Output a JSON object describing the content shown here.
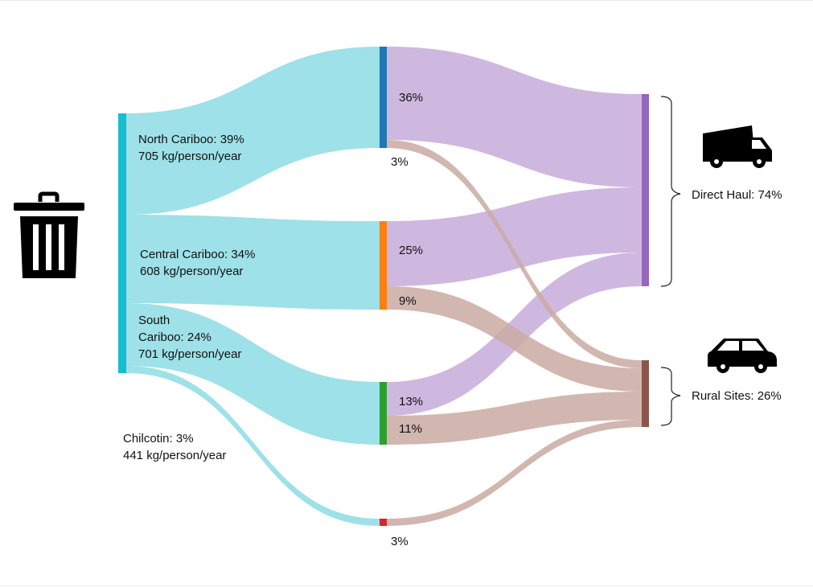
{
  "colors": {
    "source_bar": "#17becf",
    "region_flow": "#9ee1e8",
    "direct_flow": "#cfb8e0",
    "rural_flow": "#c9aaa2",
    "north_cariboo": "#1f77b4",
    "central_cariboo": "#ff7f0e",
    "south_cariboo": "#2ca02c",
    "chilcotin": "#d62728",
    "direct_haul": "#9467bd",
    "rural_sites": "#8c564b",
    "icon": "#000000"
  },
  "icons": {
    "waste": "trash-can-icon",
    "direct_haul": "dump-truck-icon",
    "rural_sites": "car-icon"
  },
  "regions": {
    "north": {
      "name": "North Cariboo: 39%",
      "rate": "705 kg/person/year"
    },
    "central": {
      "name": "Central Cariboo: 34%",
      "rate": "608 kg/person/year"
    },
    "south": {
      "name_line1": "South",
      "name_line2": "Cariboo: 24%",
      "rate": "701 kg/person/year"
    },
    "chilcotin": {
      "name": "Chilcotin: 3%",
      "rate": "441 kg/person/year"
    }
  },
  "destinations": {
    "direct": "Direct Haul: 74%",
    "rural": "Rural Sites: 26%"
  },
  "chart_data": {
    "type": "sankey",
    "nodes": [
      "North Cariboo",
      "Central Cariboo",
      "South Cariboo",
      "Chilcotin",
      "Direct Haul",
      "Rural Sites"
    ],
    "region_share_pct": {
      "North Cariboo": 39,
      "Central Cariboo": 34,
      "South Cariboo": 24,
      "Chilcotin": 3
    },
    "region_rate_kg_per_person_year": {
      "North Cariboo": 705,
      "Central Cariboo": 608,
      "South Cariboo": 701,
      "Chilcotin": 441
    },
    "destination_share_pct": {
      "Direct Haul": 74,
      "Rural Sites": 26
    },
    "links": [
      {
        "source": "North Cariboo",
        "target": "Direct Haul",
        "value": 36,
        "label": "36%"
      },
      {
        "source": "North Cariboo",
        "target": "Rural Sites",
        "value": 3,
        "label": "3%"
      },
      {
        "source": "Central Cariboo",
        "target": "Direct Haul",
        "value": 25,
        "label": "25%"
      },
      {
        "source": "Central Cariboo",
        "target": "Rural Sites",
        "value": 9,
        "label": "9%"
      },
      {
        "source": "South Cariboo",
        "target": "Direct Haul",
        "value": 13,
        "label": "13%"
      },
      {
        "source": "South Cariboo",
        "target": "Rural Sites",
        "value": 11,
        "label": "11%"
      },
      {
        "source": "Chilcotin",
        "target": "Rural Sites",
        "value": 3,
        "label": "3%"
      }
    ]
  }
}
